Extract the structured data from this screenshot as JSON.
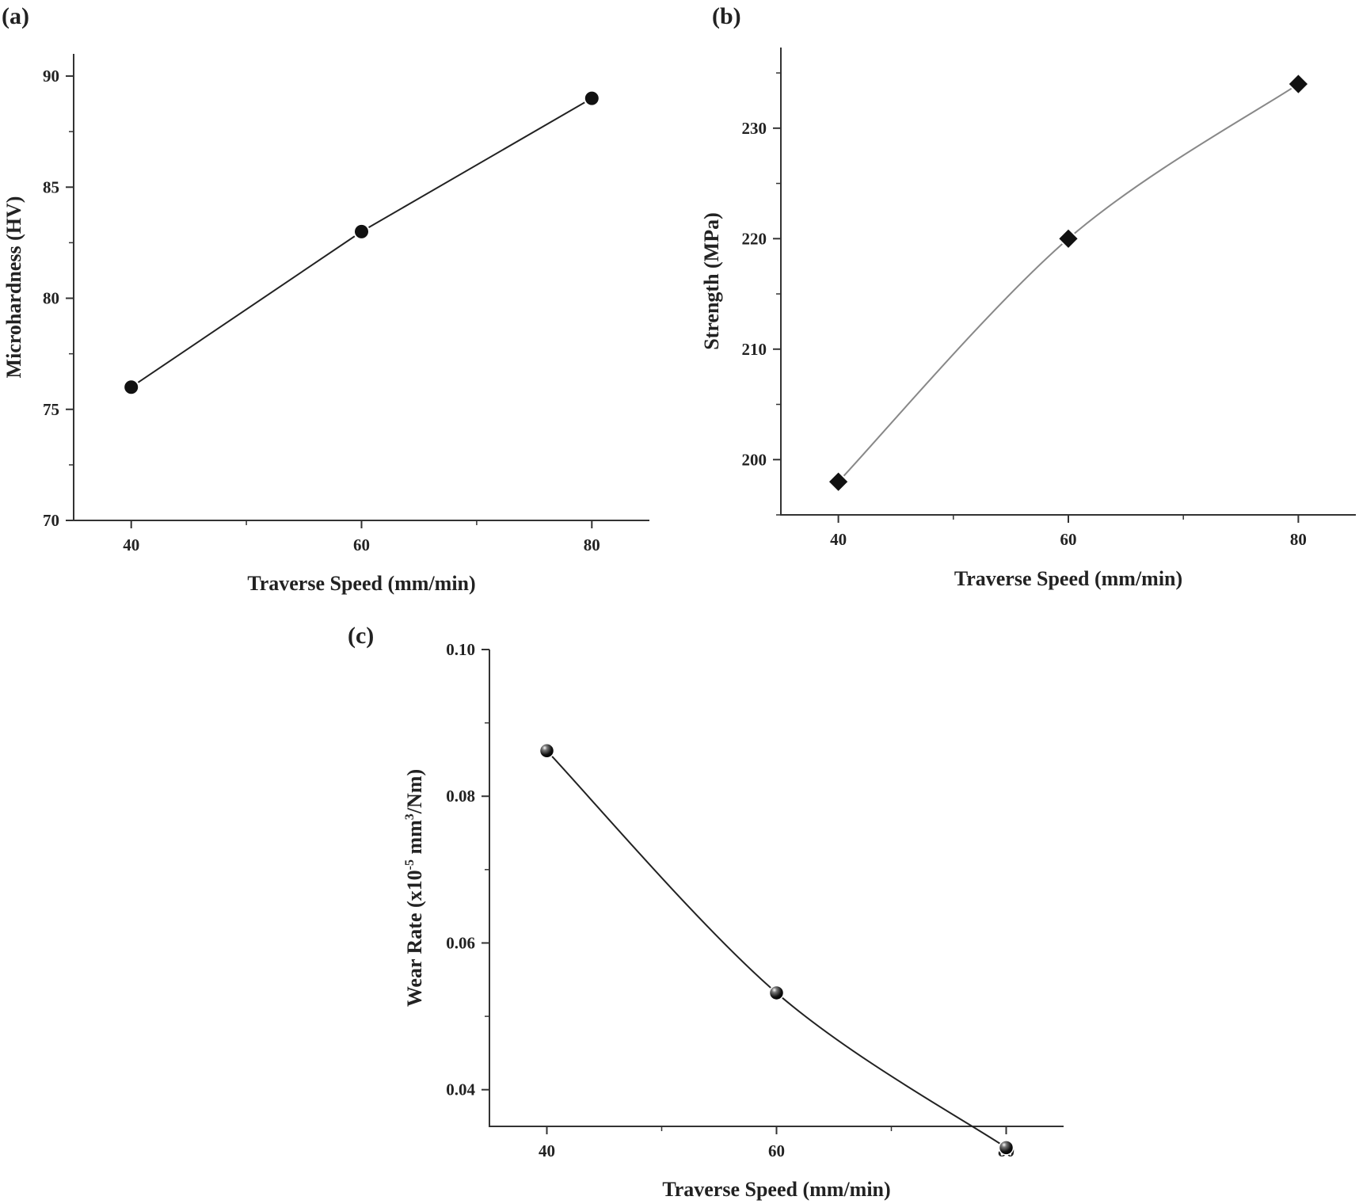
{
  "chart_data": [
    {
      "panel_label": "(a)",
      "type": "line",
      "xlabel": "Traverse Speed (mm/min)",
      "ylabel": "Microhardness (HV)",
      "x": [
        40,
        60,
        80
      ],
      "values": [
        76,
        83,
        89
      ],
      "xlim": [
        35,
        85
      ],
      "ylim": [
        70,
        91
      ],
      "xticks": [
        40,
        60,
        80
      ],
      "yticks": [
        70,
        75,
        80,
        85,
        90
      ],
      "marker": "circle",
      "line_style": "straight",
      "line_color": "#222222",
      "grid": false
    },
    {
      "panel_label": "(b)",
      "type": "line",
      "xlabel": "Traverse Speed (mm/min)",
      "ylabel": "Strength  (MPa)",
      "x": [
        40,
        60,
        80
      ],
      "values": [
        198,
        220,
        234
      ],
      "xlim": [
        35,
        85
      ],
      "ylim": [
        195,
        237.3
      ],
      "xticks": [
        40,
        60,
        80
      ],
      "yticks": [
        200,
        210,
        220,
        230
      ],
      "marker": "diamond",
      "line_style": "smooth",
      "line_color": "#888888",
      "grid": false
    },
    {
      "panel_label": "(c)",
      "type": "line",
      "xlabel": "Traverse Speed (mm/min)",
      "ylabel_parts": [
        "Wear Rate (x10",
        "-5",
        " mm",
        "3",
        "/Nm)"
      ],
      "x": [
        40,
        60,
        80
      ],
      "values": [
        0.0862,
        0.0532,
        0.0321
      ],
      "xlim": [
        35,
        85
      ],
      "ylim": [
        0.035,
        0.1
      ],
      "xticks": [
        40,
        60,
        80
      ],
      "yticks": [
        "0.04",
        "0.06",
        "0.08",
        "0.10"
      ],
      "marker": "sphere",
      "line_style": "smooth",
      "line_color": "#222222",
      "grid": false
    }
  ]
}
